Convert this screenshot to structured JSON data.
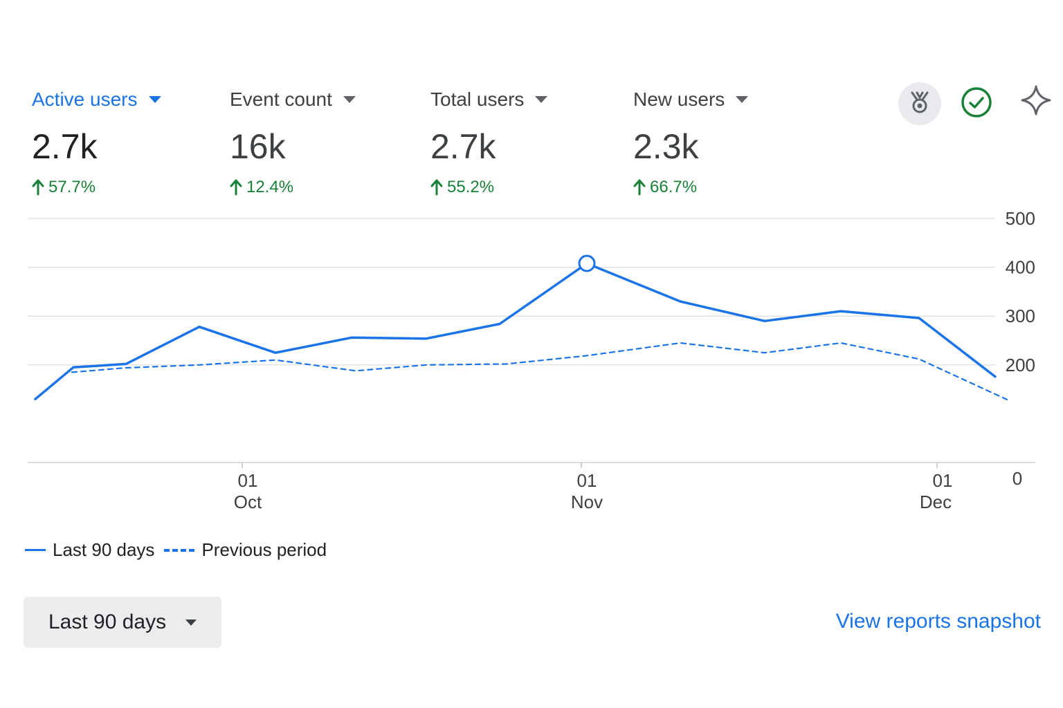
{
  "metrics": [
    {
      "label": "Active users",
      "value": "2.7k",
      "change": "57.7%",
      "active": true
    },
    {
      "label": "Event count",
      "value": "16k",
      "change": "12.4%",
      "active": false
    },
    {
      "label": "Total users",
      "value": "2.7k",
      "change": "55.2%",
      "active": false
    },
    {
      "label": "New users",
      "value": "2.3k",
      "change": "66.7%",
      "active": false
    }
  ],
  "toolbar": {
    "icons": [
      "insights-icon",
      "check-circle-icon",
      "sparkle-icon"
    ],
    "check_color": "#188038"
  },
  "colors": {
    "accent": "#1a73e8",
    "positive": "#188038"
  },
  "chart_data": {
    "type": "line",
    "y_ticks": [
      "500",
      "400",
      "300",
      "200",
      "0"
    ],
    "ylim": [
      0,
      500
    ],
    "x_ticks": [
      {
        "day": "01",
        "month": "Oct"
      },
      {
        "day": "01",
        "month": "Nov"
      },
      {
        "day": "01",
        "month": "Dec"
      }
    ],
    "grid": true,
    "series": [
      {
        "name": "Last 90 days",
        "style": "solid",
        "color": "#1a73e8",
        "values": [
          130,
          195,
          202,
          278,
          225,
          256,
          254,
          284,
          408,
          330,
          290,
          310,
          296,
          176
        ]
      },
      {
        "name": "Previous period",
        "style": "dashed",
        "color": "#1a73e8",
        "values": [
          185,
          194,
          200,
          210,
          188,
          200,
          202,
          219,
          245,
          225,
          245,
          212,
          129
        ]
      }
    ],
    "highlight": {
      "series": 0,
      "index": 8,
      "value": 408
    }
  },
  "legend": [
    {
      "label": "Last 90 days",
      "style": "solid"
    },
    {
      "label": "Previous period",
      "style": "dashed"
    }
  ],
  "date_range": {
    "label": "Last 90 days"
  },
  "snapshot_link": {
    "label": "View reports snapshot"
  }
}
